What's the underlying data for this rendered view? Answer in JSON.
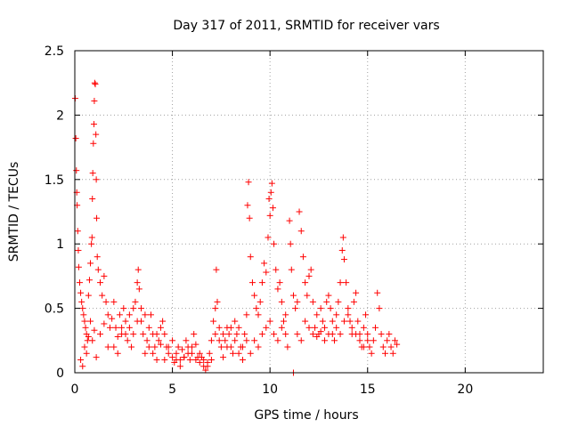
{
  "chart_data": {
    "type": "scatter",
    "title": "Day 317 of 2011, SRMTID for receiver vars",
    "xlabel": "GPS time / hours",
    "ylabel": "SRMTID / TECUs",
    "xlim": [
      0,
      24
    ],
    "ylim": [
      0,
      2.5
    ],
    "x_ticks": [
      0,
      5,
      10,
      15,
      20
    ],
    "x_tick_labels": [
      "0",
      "5",
      "10",
      "15",
      "20"
    ],
    "y_ticks": [
      0,
      0.5,
      1,
      1.5,
      2,
      2.5
    ],
    "y_tick_labels": [
      "0",
      "0.5",
      "1",
      "1.5",
      "2",
      "2.5"
    ],
    "grid": true,
    "marker": "plus",
    "color": "#ff0000",
    "series": [
      {
        "name": "SRMTID",
        "points": [
          [
            0.02,
            2.13
          ],
          [
            0.05,
            1.82
          ],
          [
            0.08,
            1.57
          ],
          [
            0.1,
            1.4
          ],
          [
            0.12,
            1.3
          ],
          [
            0.15,
            1.1
          ],
          [
            0.18,
            0.95
          ],
          [
            0.2,
            0.82
          ],
          [
            0.25,
            0.7
          ],
          [
            0.3,
            0.62
          ],
          [
            0.35,
            0.55
          ],
          [
            0.4,
            0.5
          ],
          [
            0.45,
            0.45
          ],
          [
            0.5,
            0.4
          ],
          [
            0.55,
            0.35
          ],
          [
            0.6,
            0.3
          ],
          [
            0.65,
            0.25
          ],
          [
            0.7,
            0.6
          ],
          [
            0.75,
            0.72
          ],
          [
            0.8,
            0.85
          ],
          [
            0.85,
            1.0
          ],
          [
            0.88,
            1.05
          ],
          [
            0.9,
            1.35
          ],
          [
            0.92,
            1.55
          ],
          [
            0.95,
            1.78
          ],
          [
            0.98,
            1.93
          ],
          [
            1.0,
            2.11
          ],
          [
            1.02,
            2.25
          ],
          [
            1.05,
            2.24
          ],
          [
            1.08,
            1.85
          ],
          [
            1.1,
            1.5
          ],
          [
            1.12,
            1.2
          ],
          [
            1.15,
            0.9
          ],
          [
            1.2,
            0.8
          ],
          [
            1.3,
            0.7
          ],
          [
            1.4,
            0.6
          ],
          [
            1.5,
            0.75
          ],
          [
            1.6,
            0.55
          ],
          [
            1.7,
            0.45
          ],
          [
            1.8,
            0.35
          ],
          [
            0.3,
            0.1
          ],
          [
            0.4,
            0.05
          ],
          [
            0.5,
            0.2
          ],
          [
            0.6,
            0.15
          ],
          [
            0.7,
            0.28
          ],
          [
            0.8,
            0.4
          ],
          [
            0.9,
            0.25
          ],
          [
            1.0,
            0.33
          ],
          [
            1.1,
            0.12
          ],
          [
            1.3,
            0.3
          ],
          [
            1.5,
            0.38
          ],
          [
            1.7,
            0.2
          ],
          [
            1.9,
            0.42
          ],
          [
            2.0,
            0.55
          ],
          [
            2.1,
            0.35
          ],
          [
            2.2,
            0.28
          ],
          [
            2.3,
            0.45
          ],
          [
            2.4,
            0.3
          ],
          [
            2.5,
            0.5
          ],
          [
            2.6,
            0.4
          ],
          [
            2.7,
            0.25
          ],
          [
            2.8,
            0.35
          ],
          [
            2.9,
            0.2
          ],
          [
            3.0,
            0.3
          ],
          [
            3.1,
            0.55
          ],
          [
            3.2,
            0.7
          ],
          [
            3.25,
            0.8
          ],
          [
            3.3,
            0.65
          ],
          [
            3.4,
            0.4
          ],
          [
            3.5,
            0.3
          ],
          [
            3.6,
            0.15
          ],
          [
            3.7,
            0.25
          ],
          [
            3.8,
            0.35
          ],
          [
            3.9,
            0.45
          ],
          [
            4.0,
            0.3
          ],
          [
            4.1,
            0.2
          ],
          [
            4.2,
            0.1
          ],
          [
            4.3,
            0.25
          ],
          [
            4.4,
            0.35
          ],
          [
            4.5,
            0.4
          ],
          [
            4.6,
            0.3
          ],
          [
            4.7,
            0.2
          ],
          [
            4.8,
            0.15
          ],
          [
            5.0,
            0.12
          ],
          [
            5.1,
            0.08
          ],
          [
            5.2,
            0.15
          ],
          [
            5.3,
            0.2
          ],
          [
            5.4,
            0.1
          ],
          [
            5.5,
            0.18
          ],
          [
            5.6,
            0.12
          ],
          [
            5.7,
            0.25
          ],
          [
            5.8,
            0.2
          ],
          [
            5.9,
            0.1
          ],
          [
            6.0,
            0.15
          ],
          [
            6.1,
            0.3
          ],
          [
            6.2,
            0.22
          ],
          [
            6.3,
            0.12
          ],
          [
            6.4,
            0.08
          ],
          [
            6.5,
            0.12
          ],
          [
            6.6,
            0.05
          ],
          [
            6.7,
            0.02
          ],
          [
            6.8,
            0.08
          ],
          [
            6.9,
            0.15
          ],
          [
            7.0,
            0.25
          ],
          [
            7.1,
            0.4
          ],
          [
            7.2,
            0.5
          ],
          [
            7.25,
            0.8
          ],
          [
            7.3,
            0.55
          ],
          [
            7.4,
            0.35
          ],
          [
            7.5,
            0.2
          ],
          [
            7.6,
            0.12
          ],
          [
            7.7,
            0.25
          ],
          [
            7.8,
            0.35
          ],
          [
            7.9,
            0.3
          ],
          [
            8.0,
            0.2
          ],
          [
            8.1,
            0.15
          ],
          [
            8.2,
            0.25
          ],
          [
            8.3,
            0.3
          ],
          [
            8.4,
            0.35
          ],
          [
            8.5,
            0.2
          ],
          [
            8.6,
            0.1
          ],
          [
            8.7,
            0.3
          ],
          [
            8.8,
            0.45
          ],
          [
            8.85,
            1.3
          ],
          [
            8.9,
            1.48
          ],
          [
            8.95,
            1.2
          ],
          [
            9.0,
            0.9
          ],
          [
            9.1,
            0.7
          ],
          [
            9.2,
            0.6
          ],
          [
            9.3,
            0.5
          ],
          [
            9.4,
            0.45
          ],
          [
            9.5,
            0.55
          ],
          [
            9.6,
            0.7
          ],
          [
            9.7,
            0.85
          ],
          [
            9.8,
            0.78
          ],
          [
            9.9,
            1.05
          ],
          [
            9.95,
            1.35
          ],
          [
            10.0,
            1.22
          ],
          [
            10.05,
            1.4
          ],
          [
            10.1,
            1.47
          ],
          [
            10.15,
            1.28
          ],
          [
            10.2,
            1.0
          ],
          [
            10.3,
            0.8
          ],
          [
            10.4,
            0.65
          ],
          [
            10.5,
            0.7
          ],
          [
            10.6,
            0.55
          ],
          [
            10.7,
            0.4
          ],
          [
            10.8,
            0.3
          ],
          [
            10.9,
            0.2
          ],
          [
            11.0,
            1.18
          ],
          [
            11.05,
            1.0
          ],
          [
            11.1,
            0.8
          ],
          [
            11.2,
            0.6
          ],
          [
            11.3,
            0.5
          ],
          [
            11.4,
            0.55
          ],
          [
            11.5,
            1.25
          ],
          [
            11.6,
            1.1
          ],
          [
            11.7,
            0.9
          ],
          [
            11.8,
            0.7
          ],
          [
            11.9,
            0.6
          ],
          [
            12.0,
            0.75
          ],
          [
            12.1,
            0.8
          ],
          [
            12.2,
            0.55
          ],
          [
            12.3,
            0.35
          ],
          [
            12.4,
            0.45
          ],
          [
            12.5,
            0.3
          ],
          [
            12.6,
            0.5
          ],
          [
            12.7,
            0.4
          ],
          [
            12.8,
            0.35
          ],
          [
            12.9,
            0.55
          ],
          [
            13.0,
            0.6
          ],
          [
            13.1,
            0.5
          ],
          [
            13.2,
            0.3
          ],
          [
            13.3,
            0.25
          ],
          [
            13.4,
            0.45
          ],
          [
            13.5,
            0.55
          ],
          [
            13.6,
            0.7
          ],
          [
            13.7,
            0.95
          ],
          [
            13.75,
            1.05
          ],
          [
            13.8,
            0.88
          ],
          [
            13.9,
            0.7
          ],
          [
            14.0,
            0.5
          ],
          [
            14.1,
            0.4
          ],
          [
            14.2,
            0.3
          ],
          [
            14.3,
            0.55
          ],
          [
            14.4,
            0.62
          ],
          [
            14.5,
            0.4
          ],
          [
            14.6,
            0.3
          ],
          [
            14.7,
            0.2
          ],
          [
            14.8,
            0.35
          ],
          [
            14.9,
            0.45
          ],
          [
            15.0,
            0.3
          ],
          [
            15.1,
            0.2
          ],
          [
            15.2,
            0.15
          ],
          [
            15.3,
            0.25
          ],
          [
            15.4,
            0.35
          ],
          [
            15.5,
            0.62
          ],
          [
            15.6,
            0.5
          ],
          [
            15.7,
            0.3
          ],
          [
            15.8,
            0.2
          ],
          [
            15.9,
            0.15
          ],
          [
            16.0,
            0.25
          ],
          [
            16.1,
            0.3
          ],
          [
            16.2,
            0.2
          ],
          [
            16.3,
            0.15
          ],
          [
            16.4,
            0.25
          ],
          [
            16.5,
            0.22
          ],
          [
            9.0,
            0.15
          ],
          [
            9.2,
            0.25
          ],
          [
            9.4,
            0.2
          ],
          [
            9.6,
            0.3
          ],
          [
            9.8,
            0.35
          ],
          [
            10.0,
            0.4
          ],
          [
            10.2,
            0.3
          ],
          [
            10.4,
            0.25
          ],
          [
            10.6,
            0.35
          ],
          [
            10.8,
            0.45
          ],
          [
            11.2,
            0.0
          ],
          [
            11.4,
            0.3
          ],
          [
            11.6,
            0.25
          ],
          [
            11.8,
            0.4
          ],
          [
            12.0,
            0.35
          ],
          [
            12.2,
            0.3
          ],
          [
            12.4,
            0.28
          ],
          [
            12.6,
            0.32
          ],
          [
            12.8,
            0.25
          ],
          [
            13.0,
            0.3
          ],
          [
            13.2,
            0.4
          ],
          [
            13.4,
            0.35
          ],
          [
            13.6,
            0.3
          ],
          [
            13.8,
            0.4
          ],
          [
            14.0,
            0.45
          ],
          [
            14.2,
            0.35
          ],
          [
            14.4,
            0.3
          ],
          [
            14.6,
            0.25
          ],
          [
            14.8,
            0.2
          ],
          [
            15.0,
            0.25
          ],
          [
            2.0,
            0.2
          ],
          [
            2.2,
            0.15
          ],
          [
            2.4,
            0.35
          ],
          [
            2.6,
            0.3
          ],
          [
            2.8,
            0.45
          ],
          [
            3.0,
            0.5
          ],
          [
            3.2,
            0.4
          ],
          [
            3.4,
            0.5
          ],
          [
            3.6,
            0.45
          ],
          [
            3.8,
            0.2
          ],
          [
            4.0,
            0.15
          ],
          [
            4.2,
            0.3
          ],
          [
            4.4,
            0.22
          ],
          [
            4.6,
            0.1
          ],
          [
            4.8,
            0.2
          ],
          [
            5.0,
            0.25
          ],
          [
            5.2,
            0.1
          ],
          [
            5.4,
            0.05
          ],
          [
            5.6,
            0.12
          ],
          [
            5.8,
            0.15
          ],
          [
            6.0,
            0.2
          ],
          [
            6.2,
            0.1
          ],
          [
            6.4,
            0.15
          ],
          [
            6.6,
            0.1
          ],
          [
            6.8,
            0.05
          ],
          [
            7.0,
            0.1
          ],
          [
            7.2,
            0.3
          ],
          [
            7.4,
            0.25
          ],
          [
            7.6,
            0.3
          ],
          [
            7.8,
            0.2
          ],
          [
            8.0,
            0.35
          ],
          [
            8.2,
            0.4
          ],
          [
            8.4,
            0.15
          ],
          [
            8.6,
            0.2
          ],
          [
            8.8,
            0.25
          ]
        ]
      }
    ]
  }
}
